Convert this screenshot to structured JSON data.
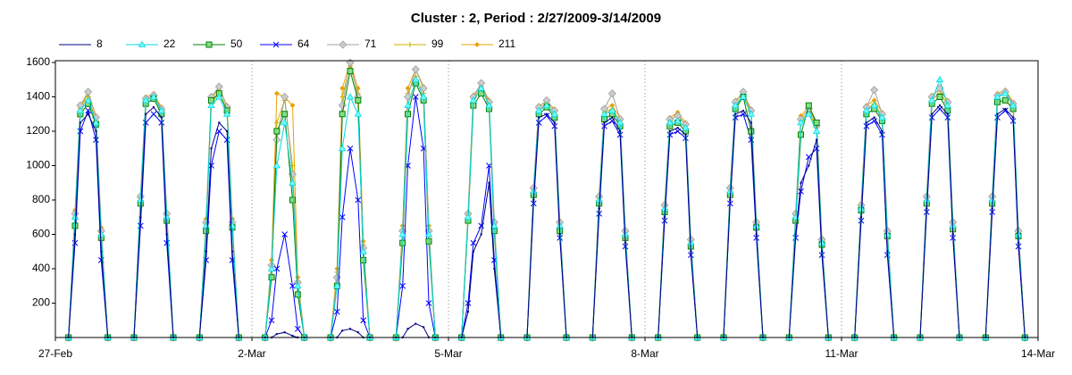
{
  "chart_data": {
    "type": "line",
    "title": "Cluster : 2, Period : 2/27/2009-3/14/2009",
    "xlim": [
      0,
      15
    ],
    "xticks": [
      {
        "value": 0,
        "label": "27-Feb"
      },
      {
        "value": 3,
        "label": "2-Mar"
      },
      {
        "value": 6,
        "label": "5-Mar"
      },
      {
        "value": 9,
        "label": "8-Mar"
      },
      {
        "value": 12,
        "label": "11-Mar"
      },
      {
        "value": 15,
        "label": "14-Mar"
      }
    ],
    "ylim": [
      0,
      1600
    ],
    "yticks": [
      200,
      400,
      600,
      800,
      1000,
      1200,
      1400,
      1600
    ],
    "grid": true,
    "legend": "top",
    "x": [
      0.2,
      0.3,
      0.38,
      0.5,
      0.62,
      0.7,
      0.8,
      1.2,
      1.3,
      1.38,
      1.5,
      1.62,
      1.7,
      1.8,
      2.2,
      2.3,
      2.38,
      2.5,
      2.62,
      2.7,
      2.8,
      3.2,
      3.3,
      3.38,
      3.5,
      3.62,
      3.7,
      3.8,
      4.2,
      4.3,
      4.38,
      4.5,
      4.62,
      4.7,
      4.8,
      5.2,
      5.3,
      5.38,
      5.5,
      5.62,
      5.7,
      5.8,
      6.2,
      6.3,
      6.38,
      6.5,
      6.62,
      6.7,
      6.8,
      7.2,
      7.3,
      7.38,
      7.5,
      7.62,
      7.7,
      7.8,
      8.2,
      8.3,
      8.38,
      8.5,
      8.62,
      8.7,
      8.8,
      9.2,
      9.3,
      9.38,
      9.5,
      9.62,
      9.7,
      9.8,
      10.2,
      10.3,
      10.38,
      10.5,
      10.62,
      10.7,
      10.8,
      11.2,
      11.3,
      11.38,
      11.5,
      11.62,
      11.7,
      11.8,
      12.2,
      12.3,
      12.38,
      12.5,
      12.62,
      12.7,
      12.8,
      13.2,
      13.3,
      13.38,
      13.5,
      13.62,
      13.7,
      13.8,
      14.2,
      14.3,
      14.38,
      14.5,
      14.62,
      14.7,
      14.8
    ],
    "series": [
      {
        "name": "8",
        "color": "#000080",
        "values": [
          0,
          600,
          1250,
          1300,
          1200,
          500,
          0,
          0,
          700,
          1300,
          1340,
          1280,
          600,
          0,
          0,
          500,
          1100,
          1250,
          1200,
          500,
          0,
          0,
          0,
          20,
          30,
          10,
          0,
          0,
          0,
          0,
          40,
          50,
          30,
          0,
          0,
          0,
          0,
          50,
          80,
          60,
          0,
          0,
          0,
          150,
          500,
          600,
          900,
          400,
          0,
          0,
          800,
          1280,
          1300,
          1250,
          600,
          0,
          0,
          750,
          1250,
          1280,
          1200,
          550,
          0,
          0,
          700,
          1200,
          1220,
          1180,
          500,
          0,
          0,
          800,
          1300,
          1320,
          1250,
          600,
          0,
          0,
          600,
          900,
          1000,
          1150,
          500,
          0,
          0,
          700,
          1250,
          1280,
          1200,
          500,
          0,
          0,
          750,
          1300,
          1350,
          1300,
          600,
          0,
          0,
          750,
          1300,
          1330,
          1280,
          550,
          0
        ]
      },
      {
        "name": "22",
        "color": "#00d8e0",
        "marker": "triangle",
        "values": [
          0,
          700,
          1320,
          1380,
          1250,
          600,
          0,
          0,
          800,
          1380,
          1400,
          1320,
          700,
          0,
          0,
          650,
          1350,
          1400,
          1300,
          650,
          0,
          0,
          400,
          1000,
          1250,
          900,
          300,
          0,
          0,
          300,
          1100,
          1400,
          1300,
          500,
          0,
          0,
          600,
          1350,
          1500,
          1400,
          600,
          0,
          0,
          700,
          1380,
          1450,
          1350,
          650,
          0,
          0,
          850,
          1320,
          1350,
          1300,
          650,
          0,
          0,
          800,
          1300,
          1320,
          1250,
          600,
          0,
          0,
          750,
          1250,
          1260,
          1220,
          550,
          0,
          0,
          850,
          1350,
          1400,
          1300,
          650,
          0,
          0,
          700,
          1250,
          1300,
          1200,
          550,
          0,
          0,
          750,
          1320,
          1350,
          1280,
          600,
          0,
          0,
          800,
          1380,
          1500,
          1350,
          650,
          0,
          0,
          800,
          1400,
          1420,
          1350,
          600,
          0
        ]
      },
      {
        "name": "50",
        "color": "#008000",
        "marker": "square",
        "values": [
          0,
          650,
          1300,
          1360,
          1240,
          580,
          0,
          0,
          780,
          1360,
          1390,
          1300,
          680,
          0,
          0,
          620,
          1380,
          1420,
          1320,
          640,
          0,
          0,
          350,
          1200,
          1300,
          800,
          250,
          0,
          0,
          300,
          1300,
          1550,
          1380,
          450,
          0,
          0,
          550,
          1300,
          1480,
          1380,
          560,
          0,
          0,
          680,
          1350,
          1420,
          1330,
          620,
          0,
          0,
          830,
          1300,
          1340,
          1280,
          620,
          0,
          0,
          780,
          1270,
          1300,
          1230,
          580,
          0,
          0,
          730,
          1230,
          1250,
          1200,
          530,
          0,
          0,
          830,
          1330,
          1400,
          1200,
          640,
          0,
          0,
          680,
          1180,
          1350,
          1250,
          540,
          0,
          0,
          740,
          1300,
          1330,
          1260,
          590,
          0,
          0,
          780,
          1360,
          1400,
          1320,
          630,
          0,
          0,
          780,
          1370,
          1380,
          1330,
          590,
          0
        ]
      },
      {
        "name": "64",
        "color": "#0000ff",
        "marker": "cross",
        "values": [
          0,
          550,
          1200,
          1320,
          1150,
          450,
          0,
          0,
          650,
          1250,
          1300,
          1250,
          550,
          0,
          0,
          450,
          1000,
          1200,
          1150,
          450,
          0,
          0,
          100,
          400,
          600,
          300,
          50,
          0,
          0,
          150,
          700,
          1100,
          800,
          100,
          0,
          0,
          300,
          1000,
          1400,
          1100,
          200,
          0,
          0,
          200,
          550,
          650,
          1000,
          450,
          0,
          0,
          780,
          1250,
          1290,
          1230,
          580,
          0,
          0,
          720,
          1230,
          1260,
          1180,
          530,
          0,
          0,
          680,
          1180,
          1200,
          1160,
          480,
          0,
          0,
          780,
          1280,
          1300,
          1150,
          580,
          0,
          0,
          580,
          850,
          1050,
          1100,
          480,
          0,
          0,
          680,
          1230,
          1260,
          1180,
          480,
          0,
          0,
          730,
          1280,
          1330,
          1280,
          580,
          0,
          0,
          730,
          1280,
          1320,
          1260,
          530,
          0
        ]
      },
      {
        "name": "71",
        "color": "#a0a0a0",
        "marker": "diamond",
        "values": [
          0,
          720,
          1350,
          1430,
          1280,
          620,
          0,
          0,
          820,
          1390,
          1410,
          1330,
          720,
          0,
          0,
          670,
          1400,
          1460,
          1340,
          670,
          0,
          0,
          420,
          1150,
          1400,
          950,
          320,
          0,
          0,
          350,
          1350,
          1600,
          1400,
          520,
          0,
          0,
          620,
          1400,
          1560,
          1450,
          620,
          0,
          0,
          720,
          1400,
          1480,
          1370,
          670,
          0,
          0,
          870,
          1340,
          1380,
          1320,
          670,
          0,
          0,
          820,
          1330,
          1420,
          1270,
          620,
          0,
          0,
          770,
          1270,
          1290,
          1240,
          570,
          0,
          0,
          870,
          1370,
          1430,
          1320,
          670,
          0,
          0,
          720,
          1270,
          1330,
          1230,
          570,
          0,
          0,
          770,
          1340,
          1440,
          1300,
          620,
          0,
          0,
          820,
          1400,
          1450,
          1370,
          670,
          0,
          0,
          820,
          1410,
          1430,
          1360,
          620,
          0
        ]
      },
      {
        "name": "99",
        "color": "#c8b400",
        "marker": "plus",
        "values": [
          0,
          700,
          1330,
          1400,
          1260,
          610,
          0,
          0,
          810,
          1380,
          1400,
          1320,
          710,
          0,
          0,
          660,
          1360,
          1430,
          1320,
          660,
          0,
          0,
          420,
          1250,
          1380,
          1000,
          330,
          0,
          0,
          380,
          1400,
          1580,
          1420,
          540,
          0,
          0,
          630,
          1420,
          1520,
          1420,
          630,
          0,
          0,
          710,
          1390,
          1460,
          1360,
          660,
          0,
          0,
          860,
          1330,
          1360,
          1310,
          660,
          0,
          0,
          810,
          1310,
          1330,
          1260,
          610,
          0,
          0,
          760,
          1260,
          1300,
          1230,
          560,
          0,
          0,
          860,
          1360,
          1410,
          1310,
          660,
          0,
          0,
          710,
          1260,
          1310,
          1220,
          560,
          0,
          0,
          760,
          1330,
          1360,
          1290,
          610,
          0,
          0,
          810,
          1390,
          1420,
          1360,
          660,
          0,
          0,
          810,
          1400,
          1420,
          1350,
          610,
          0
        ]
      },
      {
        "name": "211",
        "color": "#e8a000",
        "marker": "small-diamond",
        "values": [
          0,
          740,
          1340,
          1420,
          1290,
          640,
          0,
          0,
          830,
          1400,
          1420,
          1340,
          730,
          0,
          0,
          690,
          1390,
          1450,
          1350,
          690,
          0,
          0,
          450,
          1420,
          1400,
          1350,
          350,
          0,
          0,
          400,
          1450,
          1600,
          1450,
          560,
          0,
          0,
          650,
          1450,
          1560,
          1460,
          650,
          0,
          0,
          730,
          1410,
          1470,
          1380,
          680,
          0,
          0,
          880,
          1350,
          1370,
          1330,
          680,
          0,
          0,
          830,
          1330,
          1350,
          1280,
          630,
          0,
          0,
          780,
          1280,
          1310,
          1250,
          580,
          0,
          0,
          880,
          1380,
          1420,
          1330,
          680,
          0,
          0,
          730,
          1290,
          1340,
          1240,
          580,
          0,
          0,
          780,
          1350,
          1380,
          1310,
          630,
          0,
          0,
          830,
          1410,
          1440,
          1380,
          680,
          0,
          0,
          830,
          1420,
          1440,
          1370,
          630,
          0
        ]
      }
    ]
  }
}
